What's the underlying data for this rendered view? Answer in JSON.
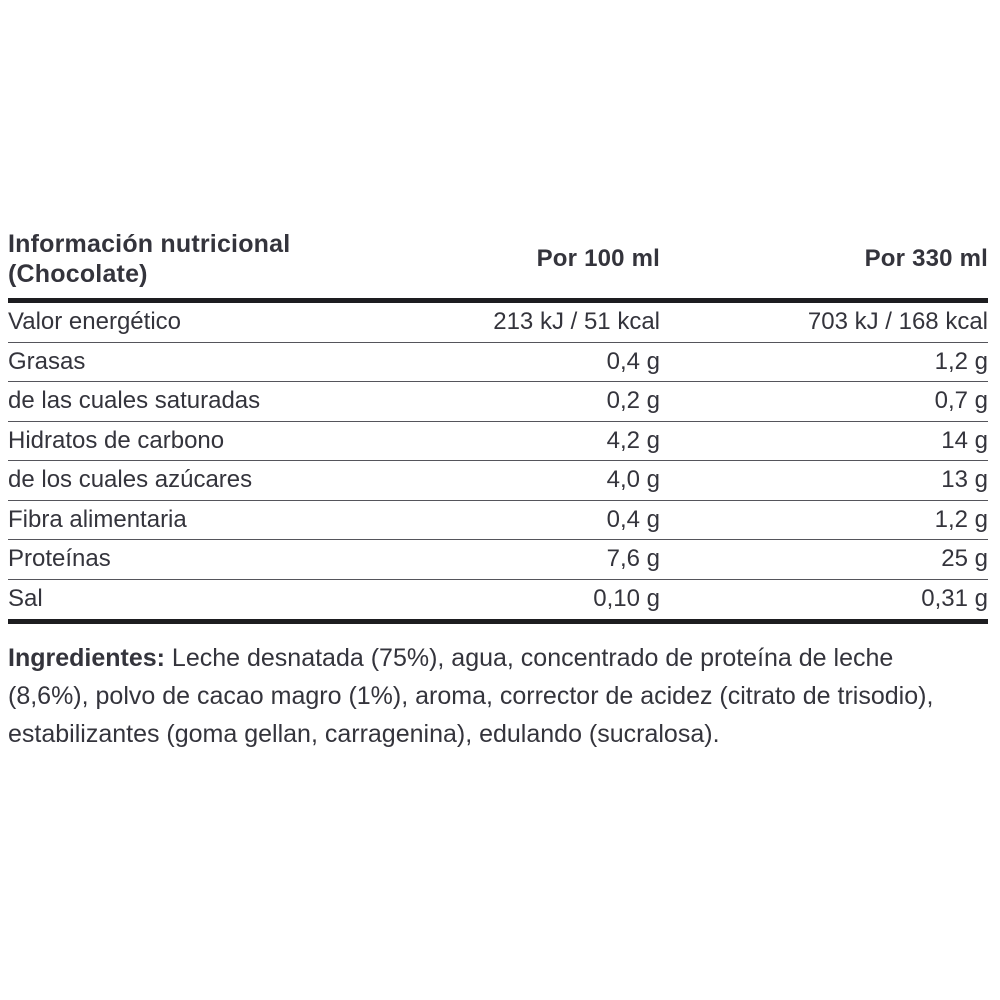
{
  "colors": {
    "text": "#34343c",
    "rule_heavy": "#1d1d20",
    "rule_light": "#55555b",
    "background": "#ffffff"
  },
  "table": {
    "title": "Información nutricional (Chocolate)",
    "columns": {
      "col1": "Por 100 ml",
      "col2": "Por 330 ml"
    },
    "rows": [
      {
        "label": "Valor energético",
        "per100": "213 kJ / 51 kcal",
        "per330": "703 kJ / 168 kcal"
      },
      {
        "label": "Grasas",
        "per100": "0,4 g",
        "per330": "1,2 g"
      },
      {
        "label": "de las cuales saturadas",
        "per100": "0,2 g",
        "per330": "0,7 g"
      },
      {
        "label": "Hidratos de carbono",
        "per100": "4,2 g",
        "per330": "14 g"
      },
      {
        "label": "de los cuales azúcares",
        "per100": "4,0 g",
        "per330": "13 g"
      },
      {
        "label": "Fibra alimentaria",
        "per100": "0,4 g",
        "per330": "1,2 g"
      },
      {
        "label": "Proteínas",
        "per100": "7,6 g",
        "per330": "25 g"
      },
      {
        "label": "Sal",
        "per100": "0,10 g",
        "per330": "0,31 g"
      }
    ]
  },
  "ingredients": {
    "label": "Ingredientes:",
    "text": " Leche desnatada (75%), agua, concentrado de proteína de leche (8,6%), polvo de cacao magro (1%), aroma, corrector de acidez (citrato de trisodio), estabilizantes (goma gellan, carragenina), edulando (sucralosa)."
  }
}
